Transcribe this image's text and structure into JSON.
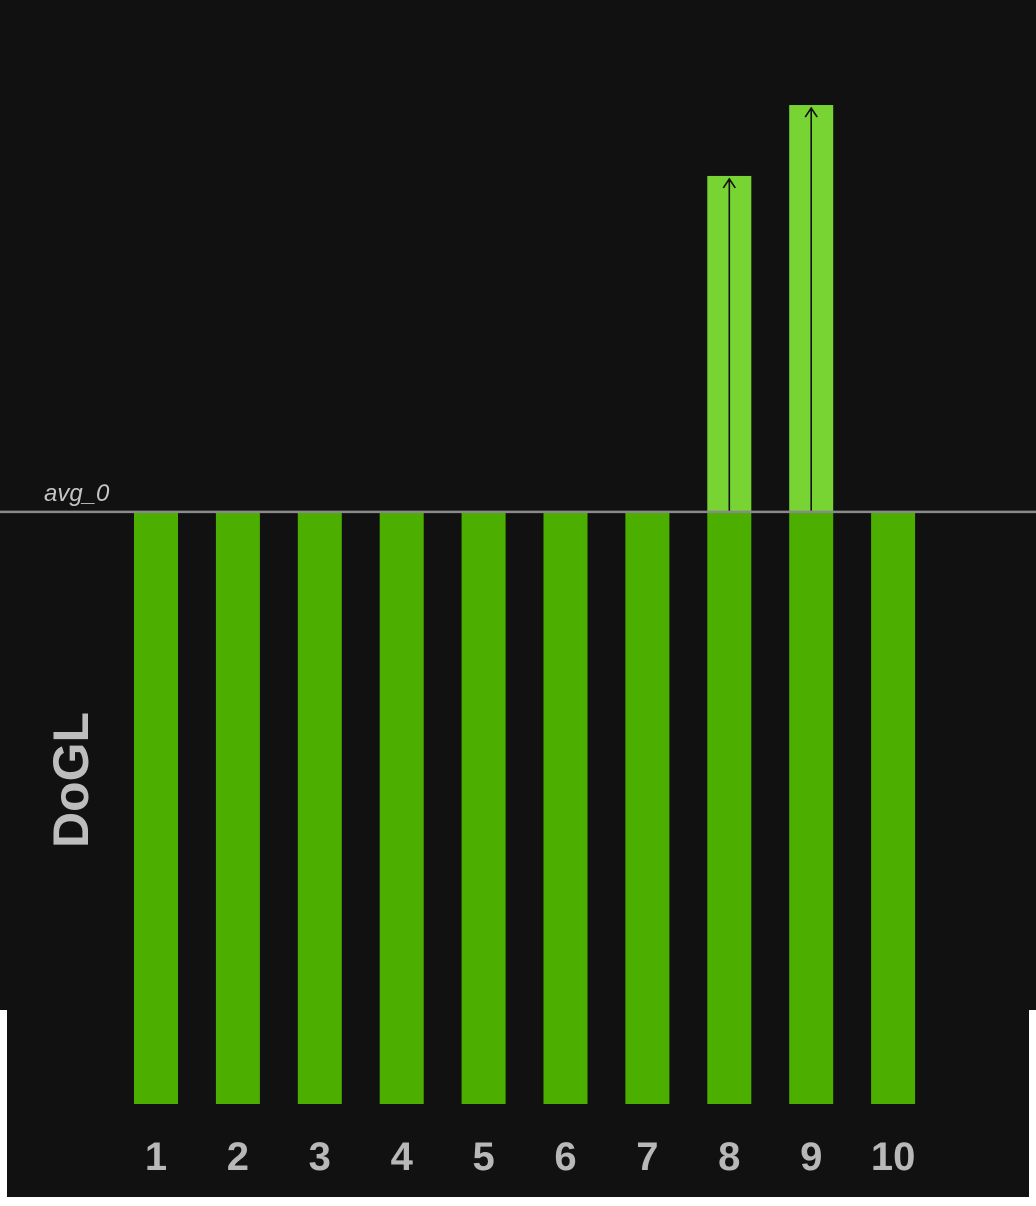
{
  "chart_data": {
    "type": "bar",
    "categories": [
      "1",
      "2",
      "3",
      "4",
      "5",
      "6",
      "7",
      "8",
      "9",
      "10"
    ],
    "values": [
      1,
      1,
      1,
      1,
      1,
      1,
      1,
      1,
      1,
      1
    ],
    "increments": [
      0,
      0,
      0,
      0,
      0,
      0,
      0,
      0.57,
      0.69,
      0
    ],
    "ylabel": "DoGL",
    "ylim": [
      0,
      1.8
    ],
    "reference_line": {
      "label": "avg_0",
      "value": 1
    },
    "grid": false,
    "legend": "none",
    "colors": {
      "background": "#111111",
      "bar": "#4caf00",
      "increment": "#77d432",
      "axis": "#bcbcbc",
      "frame": "#ffffff"
    }
  }
}
